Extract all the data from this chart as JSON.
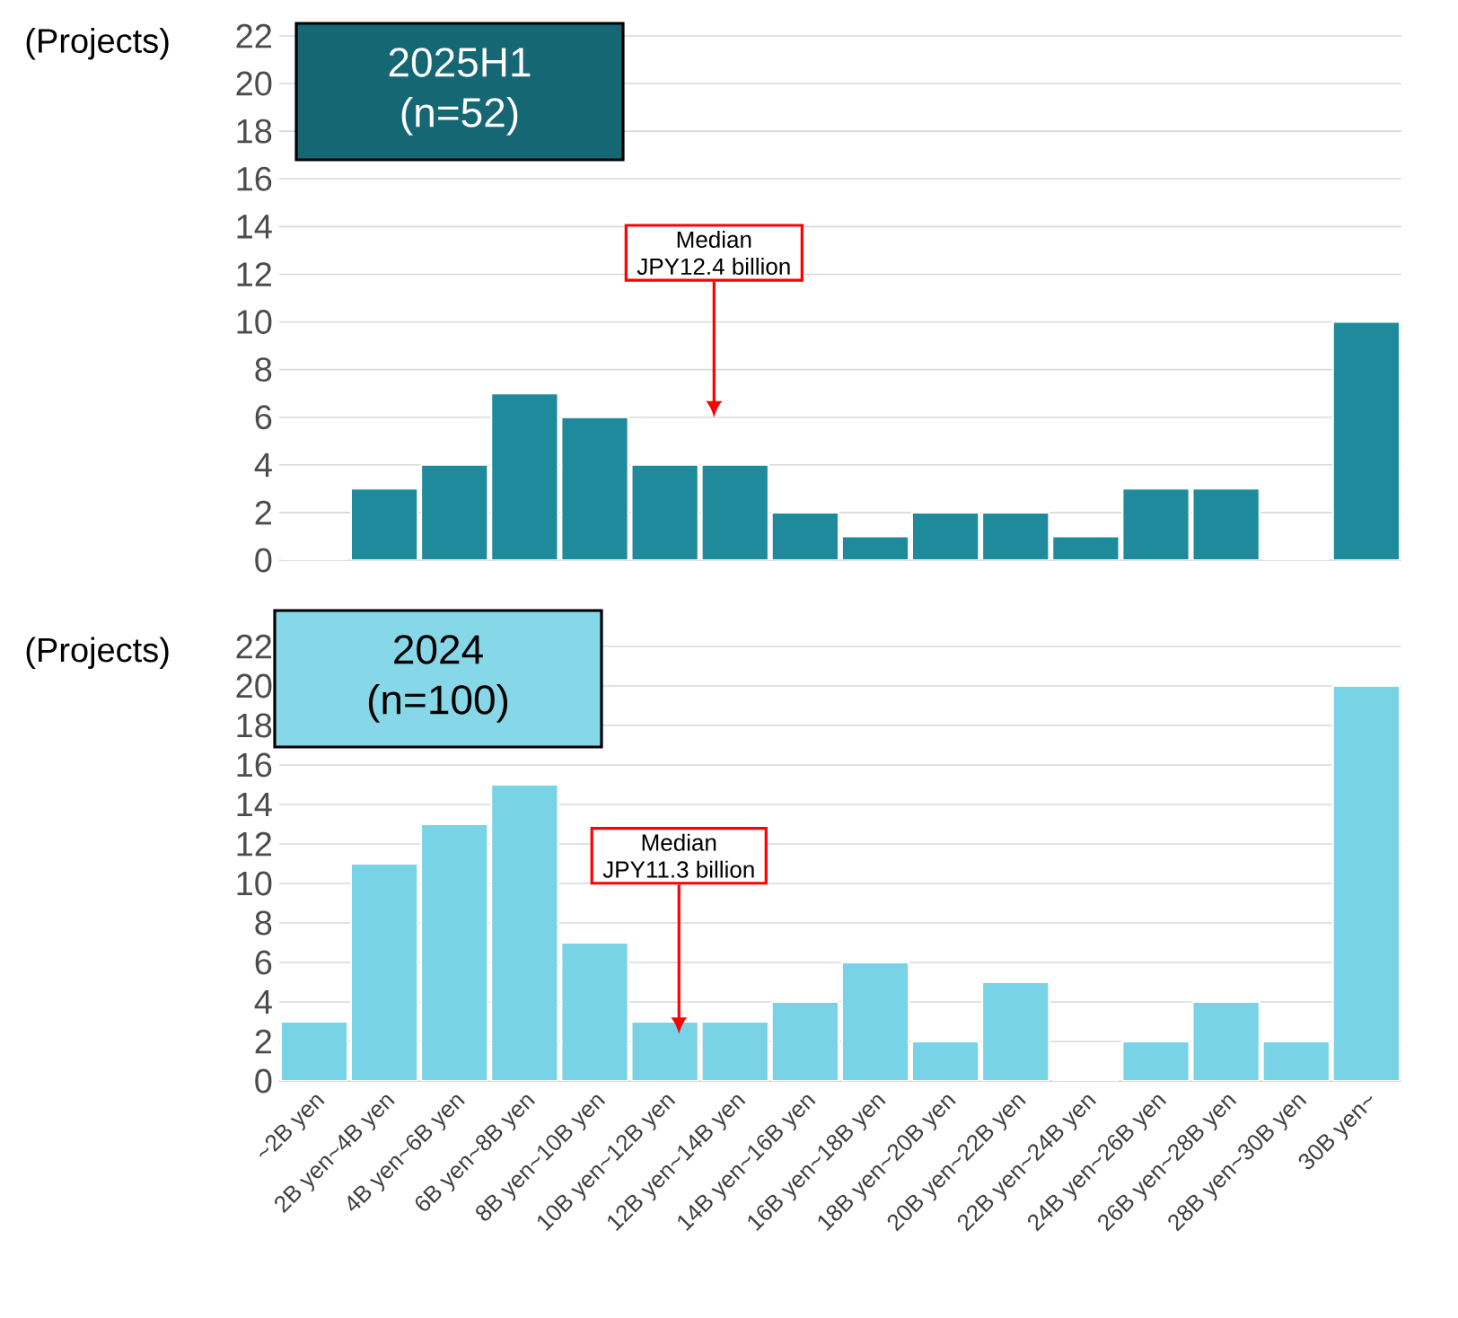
{
  "chart_data": [
    {
      "type": "bar",
      "ylabel": "(Projects)",
      "categories": [
        null,
        null,
        null,
        null,
        null,
        null,
        null,
        null,
        null,
        null,
        null,
        null,
        null,
        null,
        null,
        null
      ],
      "values": [
        0,
        3,
        4,
        7,
        6,
        4,
        4,
        2,
        1,
        2,
        2,
        1,
        3,
        3,
        0,
        10
      ],
      "color": "#1e8a9b",
      "ylim": [
        0,
        22
      ],
      "yticks": [
        0,
        2,
        4,
        6,
        8,
        10,
        12,
        14,
        16,
        18,
        20,
        22
      ],
      "grid": "y",
      "tick_labels": "y",
      "title": "2025H1",
      "subtitle": "(n=52)",
      "annotations": [
        "Median",
        "JPY12.4 billion"
      ]
    },
    {
      "type": "bar",
      "ylabel": "(Projects)",
      "categories": [
        "~2B yen",
        "2B yen~4B yen",
        "4B yen~6B yen",
        "6B yen~8B yen",
        "8B yen~10B yen",
        "10B yen~12B yen",
        "12B yen~14B yen",
        "14B yen~16B yen",
        "16B yen~18B yen",
        "18B yen~20B yen",
        "20B yen~22B yen",
        "22B yen~24B yen",
        "24B yen~26B yen",
        "26B yen~28B yen",
        "28B yen~30B yen",
        "30B yen~"
      ],
      "values": [
        3,
        11,
        13,
        15,
        7,
        3,
        3,
        4,
        6,
        2,
        5,
        0,
        2,
        4,
        2,
        20
      ],
      "color": "#79d3e6",
      "ylim": [
        0,
        22
      ],
      "yticks": [
        0,
        2,
        4,
        6,
        8,
        10,
        12,
        14,
        16,
        18,
        20,
        22
      ],
      "grid": "y",
      "title": "2024",
      "subtitle": "(n=100)",
      "annotations": [
        "Median",
        "JPY11.3 billion"
      ]
    }
  ]
}
